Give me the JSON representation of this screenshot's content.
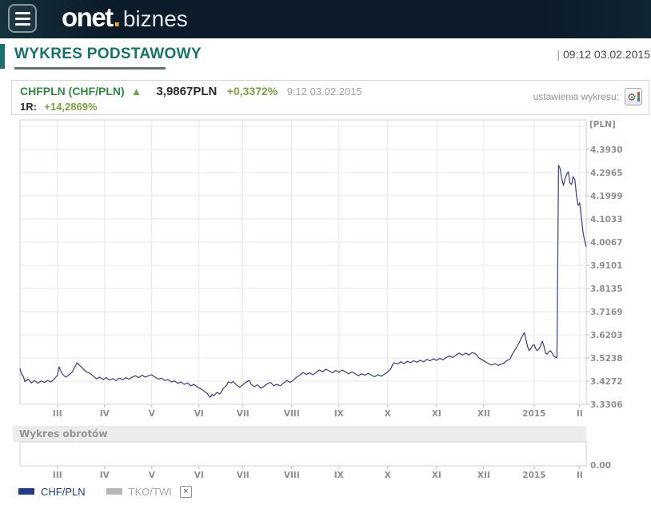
{
  "topbar": {
    "logo_main": "onet",
    "logo_dot": ".",
    "logo_sub": "biznes"
  },
  "header": {
    "title": "WYKRES PODSTAWOWY",
    "pipe": "|",
    "datetime": "09:12 03.02.2015"
  },
  "quote": {
    "symbol": "CHFPLN (CHF/PLN)",
    "arrow": "▲",
    "price": "3,9867PLN",
    "change": "+0,3372%",
    "time": "9:12 03.02.2015",
    "range_label": "1R:",
    "range_change": "+14,2869%",
    "settings_label": "ustawienia wykresu:",
    "settings_icon": "gear-icon"
  },
  "colors": {
    "accent_teal": "#15736c",
    "symbol_green": "#2f8b40",
    "change_green": "#76a33c",
    "line_navy": "#3a458f",
    "legend_navy": "#21398f",
    "legend_gray": "#b7b7b7",
    "orange_dot": "#f5a623",
    "grid_gray": "#e7e7e7"
  },
  "chart_data": [
    {
      "type": "line",
      "title": "CHFPLN (CHF/PLN) 1R",
      "unit_label": "[PLN]",
      "ylabel": "PLN",
      "grid": true,
      "legend_position": "bottom",
      "y_min": 3.3306,
      "y_tick_step": 0.0966,
      "ylim": [
        3.3306,
        4.52
      ],
      "y_ticks": [
        "4.3930",
        "4.2965",
        "4.1999",
        "4.1033",
        "4.0067",
        "3.9101",
        "3.8135",
        "3.7169",
        "3.6203",
        "3.5238",
        "3.4272",
        "3.3306"
      ],
      "x_tick_labels": [
        "III",
        "IV",
        "V",
        "VI",
        "VII",
        "VIII",
        "IX",
        "X",
        "XI",
        "XII",
        "2015",
        "II"
      ],
      "x_tick_days": [
        23,
        52,
        81,
        110,
        137,
        167,
        196,
        226,
        256,
        285,
        316,
        344
      ],
      "x_range_days": [
        0,
        348
      ],
      "series": [
        {
          "name": "CHF/PLN",
          "color": "#3a458f",
          "points_day_value": [
            [
              0,
              3.48
            ],
            [
              1,
              3.455
            ],
            [
              2,
              3.448
            ],
            [
              3,
              3.425
            ],
            [
              5,
              3.436
            ],
            [
              7,
              3.42
            ],
            [
              9,
              3.43
            ],
            [
              11,
              3.419
            ],
            [
              13,
              3.428
            ],
            [
              15,
              3.422
            ],
            [
              17,
              3.43
            ],
            [
              19,
              3.424
            ],
            [
              21,
              3.436
            ],
            [
              23,
              3.452
            ],
            [
              24,
              3.487
            ],
            [
              25,
              3.47
            ],
            [
              26,
              3.458
            ],
            [
              28,
              3.444
            ],
            [
              30,
              3.452
            ],
            [
              32,
              3.465
            ],
            [
              34,
              3.49
            ],
            [
              35,
              3.504
            ],
            [
              36,
              3.497
            ],
            [
              37,
              3.49
            ],
            [
              39,
              3.478
            ],
            [
              41,
              3.465
            ],
            [
              43,
              3.46
            ],
            [
              45,
              3.448
            ],
            [
              47,
              3.437
            ],
            [
              49,
              3.444
            ],
            [
              51,
              3.434
            ],
            [
              53,
              3.442
            ],
            [
              55,
              3.432
            ],
            [
              57,
              3.438
            ],
            [
              59,
              3.43
            ],
            [
              61,
              3.44
            ],
            [
              63,
              3.434
            ],
            [
              65,
              3.442
            ],
            [
              67,
              3.436
            ],
            [
              69,
              3.444
            ],
            [
              71,
              3.45
            ],
            [
              73,
              3.442
            ],
            [
              75,
              3.452
            ],
            [
              77,
              3.444
            ],
            [
              79,
              3.45
            ],
            [
              81,
              3.454
            ],
            [
              83,
              3.444
            ],
            [
              85,
              3.436
            ],
            [
              87,
              3.44
            ],
            [
              89,
              3.43
            ],
            [
              91,
              3.434
            ],
            [
              93,
              3.424
            ],
            [
              95,
              3.428
            ],
            [
              97,
              3.418
            ],
            [
              99,
              3.424
            ],
            [
              101,
              3.414
            ],
            [
              103,
              3.42
            ],
            [
              105,
              3.408
            ],
            [
              107,
              3.414
            ],
            [
              109,
              3.402
            ],
            [
              111,
              3.396
            ],
            [
              113,
              3.386
            ],
            [
              115,
              3.376
            ],
            [
              116,
              3.366
            ],
            [
              117,
              3.36
            ],
            [
              118,
              3.372
            ],
            [
              119,
              3.366
            ],
            [
              121,
              3.38
            ],
            [
              123,
              3.374
            ],
            [
              125,
              3.398
            ],
            [
              127,
              3.41
            ],
            [
              128,
              3.424
            ],
            [
              130,
              3.42
            ],
            [
              131,
              3.426
            ],
            [
              133,
              3.412
            ],
            [
              135,
              3.402
            ],
            [
              137,
              3.412
            ],
            [
              139,
              3.424
            ],
            [
              141,
              3.43
            ],
            [
              142,
              3.415
            ],
            [
              144,
              3.404
            ],
            [
              146,
              3.412
            ],
            [
              148,
              3.398
            ],
            [
              150,
              3.406
            ],
            [
              152,
              3.416
            ],
            [
              154,
              3.422
            ],
            [
              156,
              3.408
            ],
            [
              158,
              3.414
            ],
            [
              160,
              3.408
            ],
            [
              162,
              3.42
            ],
            [
              164,
              3.43
            ],
            [
              166,
              3.422
            ],
            [
              168,
              3.432
            ],
            [
              170,
              3.444
            ],
            [
              172,
              3.452
            ],
            [
              174,
              3.464
            ],
            [
              176,
              3.455
            ],
            [
              178,
              3.462
            ],
            [
              180,
              3.454
            ],
            [
              182,
              3.464
            ],
            [
              184,
              3.474
            ],
            [
              186,
              3.466
            ],
            [
              188,
              3.477
            ],
            [
              190,
              3.47
            ],
            [
              192,
              3.462
            ],
            [
              194,
              3.472
            ],
            [
              196,
              3.464
            ],
            [
              198,
              3.474
            ],
            [
              200,
              3.466
            ],
            [
              202,
              3.458
            ],
            [
              204,
              3.466
            ],
            [
              206,
              3.458
            ],
            [
              208,
              3.45
            ],
            [
              210,
              3.458
            ],
            [
              212,
              3.452
            ],
            [
              214,
              3.46
            ],
            [
              216,
              3.452
            ],
            [
              218,
              3.446
            ],
            [
              220,
              3.454
            ],
            [
              222,
              3.448
            ],
            [
              224,
              3.456
            ],
            [
              226,
              3.466
            ],
            [
              228,
              3.48
            ],
            [
              229,
              3.496
            ],
            [
              230,
              3.504
            ],
            [
              232,
              3.498
            ],
            [
              234,
              3.508
            ],
            [
              236,
              3.5
            ],
            [
              238,
              3.51
            ],
            [
              240,
              3.504
            ],
            [
              242,
              3.512
            ],
            [
              244,
              3.506
            ],
            [
              246,
              3.514
            ],
            [
              248,
              3.508
            ],
            [
              250,
              3.518
            ],
            [
              252,
              3.512
            ],
            [
              254,
              3.52
            ],
            [
              256,
              3.514
            ],
            [
              258,
              3.522
            ],
            [
              260,
              3.516
            ],
            [
              262,
              3.526
            ],
            [
              264,
              3.532
            ],
            [
              266,
              3.526
            ],
            [
              268,
              3.536
            ],
            [
              270,
              3.544
            ],
            [
              272,
              3.536
            ],
            [
              274,
              3.544
            ],
            [
              276,
              3.536
            ],
            [
              278,
              3.546
            ],
            [
              280,
              3.54
            ],
            [
              282,
              3.524
            ],
            [
              284,
              3.516
            ],
            [
              286,
              3.508
            ],
            [
              288,
              3.5
            ],
            [
              290,
              3.494
            ],
            [
              292,
              3.5
            ],
            [
              294,
              3.492
            ],
            [
              295,
              3.497
            ],
            [
              297,
              3.5
            ],
            [
              299,
              3.512
            ],
            [
              301,
              3.518
            ],
            [
              303,
              3.544
            ],
            [
              305,
              3.566
            ],
            [
              307,
              3.59
            ],
            [
              308,
              3.606
            ],
            [
              310,
              3.63
            ],
            [
              311,
              3.6
            ],
            [
              312,
              3.57
            ],
            [
              313,
              3.554
            ],
            [
              314,
              3.564
            ],
            [
              315,
              3.575
            ],
            [
              316,
              3.58
            ],
            [
              317,
              3.562
            ],
            [
              318,
              3.554
            ],
            [
              319,
              3.562
            ],
            [
              320,
              3.575
            ],
            [
              321,
              3.594
            ],
            [
              322,
              3.574
            ],
            [
              323,
              3.544
            ],
            [
              324,
              3.54
            ],
            [
              325,
              3.55
            ],
            [
              326,
              3.554
            ],
            [
              327,
              3.544
            ],
            [
              328,
              3.532
            ],
            [
              329,
              3.528
            ],
            [
              330,
              3.524
            ],
            [
              331,
              4.327
            ],
            [
              332,
              4.313
            ],
            [
              333,
              4.27
            ],
            [
              334,
              4.243
            ],
            [
              335,
              4.272
            ],
            [
              336,
              4.29
            ],
            [
              337,
              4.3
            ],
            [
              338,
              4.253
            ],
            [
              339,
              4.247
            ],
            [
              340,
              4.28
            ],
            [
              341,
              4.267
            ],
            [
              342,
              4.203
            ],
            [
              343,
              4.16
            ],
            [
              344,
              4.17
            ],
            [
              345,
              4.113
            ],
            [
              346,
              4.05
            ],
            [
              347,
              4.013
            ],
            [
              348,
              3.987
            ]
          ]
        }
      ]
    },
    {
      "type": "area",
      "title": "Wykres obrotów",
      "y_base_label": "0.00",
      "x_tick_labels": [
        "III",
        "IV",
        "V",
        "VI",
        "VII",
        "VIII",
        "IX",
        "X",
        "XI",
        "XII",
        "2015",
        "II"
      ],
      "values": []
    }
  ],
  "legend": [
    {
      "label": "CHF/PLN",
      "color": "#21398f",
      "label_color": "#21398f",
      "closable": false
    },
    {
      "label": "TKO/TWI",
      "color": "#b7b7b7",
      "label_color": "#a6a6a6",
      "closable": true,
      "close_glyph": "×"
    }
  ]
}
